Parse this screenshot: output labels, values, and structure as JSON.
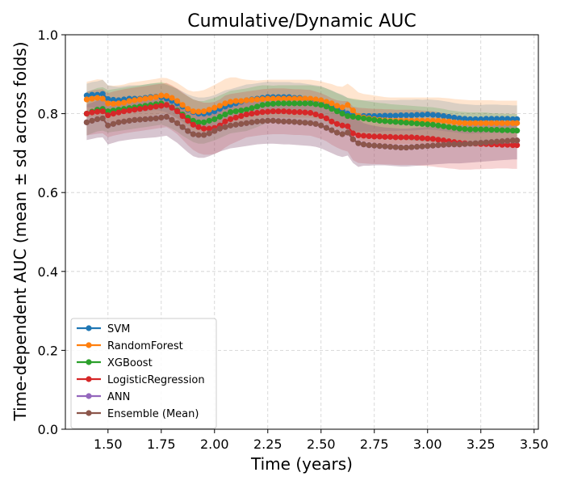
{
  "chart_data": {
    "type": "line",
    "title": "Cumulative/Dynamic AUC",
    "xlabel": "Time (years)",
    "ylabel": "Time-dependent AUC (mean ± sd across folds)",
    "xlim": [
      1.3,
      3.52
    ],
    "ylim": [
      0.0,
      1.0
    ],
    "xticks": [
      "1.50",
      "1.75",
      "2.00",
      "2.25",
      "2.50",
      "2.75",
      "3.00",
      "3.25",
      "3.50"
    ],
    "yticks": [
      "0.0",
      "0.2",
      "0.4",
      "0.6",
      "0.8",
      "1.0"
    ],
    "grid": true,
    "legend_position": "lower-left",
    "x": [
      1.4,
      1.425,
      1.45,
      1.475,
      1.5,
      1.525,
      1.55,
      1.575,
      1.6,
      1.625,
      1.65,
      1.675,
      1.7,
      1.725,
      1.75,
      1.775,
      1.8,
      1.825,
      1.85,
      1.875,
      1.9,
      1.925,
      1.95,
      1.975,
      2.0,
      2.025,
      2.05,
      2.075,
      2.1,
      2.125,
      2.15,
      2.175,
      2.2,
      2.225,
      2.25,
      2.275,
      2.3,
      2.325,
      2.35,
      2.375,
      2.4,
      2.425,
      2.45,
      2.475,
      2.5,
      2.525,
      2.55,
      2.575,
      2.6,
      2.625,
      2.65,
      2.675,
      2.7,
      2.725,
      2.75,
      2.775,
      2.8,
      2.825,
      2.85,
      2.875,
      2.9,
      2.925,
      2.95,
      2.975,
      3.0,
      3.025,
      3.05,
      3.075,
      3.1,
      3.125,
      3.15,
      3.175,
      3.2,
      3.225,
      3.25,
      3.275,
      3.3,
      3.325,
      3.35,
      3.375,
      3.4,
      3.42
    ],
    "series": [
      {
        "name": "SVM",
        "color": "#1f77b4",
        "values": [
          0.846,
          0.848,
          0.848,
          0.85,
          0.837,
          0.835,
          0.834,
          0.836,
          0.838,
          0.838,
          0.838,
          0.84,
          0.842,
          0.843,
          0.842,
          0.838,
          0.832,
          0.826,
          0.818,
          0.81,
          0.804,
          0.8,
          0.8,
          0.802,
          0.806,
          0.812,
          0.818,
          0.822,
          0.826,
          0.83,
          0.834,
          0.836,
          0.838,
          0.84,
          0.842,
          0.842,
          0.842,
          0.842,
          0.842,
          0.84,
          0.84,
          0.838,
          0.836,
          0.834,
          0.832,
          0.826,
          0.82,
          0.814,
          0.808,
          0.8,
          0.796,
          0.794,
          0.794,
          0.794,
          0.794,
          0.794,
          0.795,
          0.795,
          0.795,
          0.796,
          0.796,
          0.796,
          0.797,
          0.797,
          0.798,
          0.797,
          0.796,
          0.794,
          0.792,
          0.79,
          0.788,
          0.787,
          0.786,
          0.786,
          0.786,
          0.787,
          0.787,
          0.787,
          0.787,
          0.787,
          0.786,
          0.786
        ],
        "sd": [
          0.03,
          0.032,
          0.034,
          0.036,
          0.035,
          0.034,
          0.034,
          0.034,
          0.034,
          0.034,
          0.034,
          0.034,
          0.034,
          0.034,
          0.035,
          0.035,
          0.036,
          0.037,
          0.038,
          0.039,
          0.04,
          0.041,
          0.041,
          0.041,
          0.041,
          0.041,
          0.041,
          0.04,
          0.04,
          0.04,
          0.04,
          0.039,
          0.039,
          0.039,
          0.039,
          0.038,
          0.038,
          0.038,
          0.038,
          0.038,
          0.038,
          0.038,
          0.038,
          0.038,
          0.038,
          0.038,
          0.039,
          0.039,
          0.04,
          0.04,
          0.04,
          0.04,
          0.04,
          0.04,
          0.04,
          0.04,
          0.039,
          0.039,
          0.039,
          0.039,
          0.039,
          0.039,
          0.039,
          0.038,
          0.038,
          0.038,
          0.038,
          0.038,
          0.038,
          0.037,
          0.037,
          0.037,
          0.037,
          0.036,
          0.036,
          0.036,
          0.036,
          0.036,
          0.035,
          0.035,
          0.035,
          0.035
        ]
      },
      {
        "name": "RandomForest",
        "color": "#ff7f0e",
        "values": [
          0.836,
          0.838,
          0.84,
          0.838,
          0.826,
          0.825,
          0.826,
          0.828,
          0.832,
          0.834,
          0.836,
          0.838,
          0.84,
          0.842,
          0.846,
          0.845,
          0.84,
          0.832,
          0.822,
          0.812,
          0.806,
          0.805,
          0.806,
          0.81,
          0.815,
          0.82,
          0.826,
          0.83,
          0.832,
          0.832,
          0.834,
          0.835,
          0.836,
          0.837,
          0.838,
          0.838,
          0.838,
          0.838,
          0.838,
          0.838,
          0.838,
          0.838,
          0.838,
          0.836,
          0.834,
          0.83,
          0.826,
          0.82,
          0.816,
          0.822,
          0.808,
          0.794,
          0.79,
          0.788,
          0.786,
          0.784,
          0.783,
          0.782,
          0.782,
          0.782,
          0.782,
          0.782,
          0.782,
          0.782,
          0.782,
          0.782,
          0.782,
          0.781,
          0.78,
          0.778,
          0.777,
          0.776,
          0.776,
          0.776,
          0.776,
          0.776,
          0.776,
          0.776,
          0.776,
          0.776,
          0.776,
          0.776
        ],
        "sd": [
          0.045,
          0.046,
          0.047,
          0.048,
          0.046,
          0.046,
          0.046,
          0.046,
          0.046,
          0.046,
          0.046,
          0.046,
          0.046,
          0.046,
          0.045,
          0.045,
          0.045,
          0.046,
          0.047,
          0.048,
          0.05,
          0.052,
          0.054,
          0.056,
          0.058,
          0.06,
          0.062,
          0.062,
          0.06,
          0.056,
          0.052,
          0.05,
          0.048,
          0.048,
          0.048,
          0.048,
          0.048,
          0.048,
          0.048,
          0.048,
          0.048,
          0.048,
          0.048,
          0.048,
          0.048,
          0.048,
          0.049,
          0.05,
          0.052,
          0.054,
          0.058,
          0.06,
          0.06,
          0.06,
          0.06,
          0.06,
          0.059,
          0.059,
          0.059,
          0.059,
          0.059,
          0.059,
          0.059,
          0.059,
          0.059,
          0.059,
          0.059,
          0.059,
          0.059,
          0.059,
          0.059,
          0.059,
          0.058,
          0.058,
          0.058,
          0.058,
          0.058,
          0.057,
          0.057,
          0.057,
          0.057,
          0.057
        ]
      },
      {
        "name": "XGBoost",
        "color": "#2ca02c",
        "values": [
          0.8,
          0.805,
          0.81,
          0.812,
          0.806,
          0.808,
          0.81,
          0.812,
          0.814,
          0.816,
          0.818,
          0.82,
          0.822,
          0.824,
          0.826,
          0.822,
          0.816,
          0.808,
          0.798,
          0.79,
          0.782,
          0.778,
          0.778,
          0.782,
          0.786,
          0.792,
          0.798,
          0.804,
          0.806,
          0.808,
          0.81,
          0.814,
          0.818,
          0.822,
          0.824,
          0.825,
          0.826,
          0.826,
          0.826,
          0.826,
          0.826,
          0.826,
          0.826,
          0.824,
          0.822,
          0.818,
          0.812,
          0.806,
          0.8,
          0.794,
          0.792,
          0.79,
          0.788,
          0.786,
          0.784,
          0.782,
          0.781,
          0.78,
          0.779,
          0.778,
          0.777,
          0.776,
          0.775,
          0.774,
          0.773,
          0.772,
          0.77,
          0.768,
          0.766,
          0.764,
          0.762,
          0.761,
          0.76,
          0.76,
          0.76,
          0.76,
          0.759,
          0.759,
          0.758,
          0.758,
          0.757,
          0.757
        ],
        "sd": [
          0.055,
          0.055,
          0.055,
          0.055,
          0.054,
          0.054,
          0.054,
          0.054,
          0.054,
          0.054,
          0.054,
          0.054,
          0.054,
          0.054,
          0.054,
          0.054,
          0.054,
          0.054,
          0.054,
          0.054,
          0.054,
          0.054,
          0.054,
          0.054,
          0.054,
          0.054,
          0.054,
          0.054,
          0.054,
          0.054,
          0.054,
          0.053,
          0.052,
          0.05,
          0.048,
          0.046,
          0.046,
          0.046,
          0.046,
          0.046,
          0.046,
          0.046,
          0.046,
          0.046,
          0.046,
          0.046,
          0.046,
          0.046,
          0.046,
          0.046,
          0.046,
          0.046,
          0.045,
          0.045,
          0.045,
          0.045,
          0.045,
          0.044,
          0.044,
          0.044,
          0.044,
          0.044,
          0.044,
          0.044,
          0.044,
          0.044,
          0.044,
          0.044,
          0.043,
          0.043,
          0.043,
          0.043,
          0.043,
          0.043,
          0.043,
          0.043,
          0.042,
          0.042,
          0.042,
          0.042,
          0.042,
          0.042
        ]
      },
      {
        "name": "LogisticRegression",
        "color": "#d62728",
        "values": [
          0.8,
          0.803,
          0.805,
          0.806,
          0.796,
          0.8,
          0.803,
          0.806,
          0.808,
          0.81,
          0.812,
          0.814,
          0.816,
          0.818,
          0.82,
          0.822,
          0.815,
          0.806,
          0.794,
          0.782,
          0.772,
          0.766,
          0.762,
          0.762,
          0.764,
          0.77,
          0.78,
          0.786,
          0.79,
          0.794,
          0.798,
          0.8,
          0.802,
          0.804,
          0.805,
          0.806,
          0.806,
          0.806,
          0.805,
          0.804,
          0.804,
          0.803,
          0.802,
          0.798,
          0.794,
          0.788,
          0.78,
          0.774,
          0.77,
          0.768,
          0.75,
          0.745,
          0.744,
          0.743,
          0.742,
          0.742,
          0.741,
          0.741,
          0.74,
          0.74,
          0.74,
          0.74,
          0.739,
          0.738,
          0.737,
          0.736,
          0.734,
          0.732,
          0.73,
          0.728,
          0.726,
          0.725,
          0.724,
          0.724,
          0.723,
          0.723,
          0.722,
          0.722,
          0.721,
          0.721,
          0.72,
          0.72
        ],
        "sd": [
          0.055,
          0.056,
          0.056,
          0.056,
          0.056,
          0.056,
          0.056,
          0.056,
          0.056,
          0.056,
          0.056,
          0.056,
          0.056,
          0.056,
          0.056,
          0.056,
          0.057,
          0.058,
          0.06,
          0.062,
          0.064,
          0.066,
          0.066,
          0.066,
          0.066,
          0.066,
          0.066,
          0.064,
          0.062,
          0.06,
          0.058,
          0.058,
          0.058,
          0.058,
          0.058,
          0.058,
          0.058,
          0.058,
          0.058,
          0.058,
          0.058,
          0.058,
          0.058,
          0.058,
          0.058,
          0.058,
          0.059,
          0.06,
          0.062,
          0.064,
          0.068,
          0.07,
          0.07,
          0.07,
          0.07,
          0.07,
          0.07,
          0.07,
          0.07,
          0.07,
          0.07,
          0.07,
          0.07,
          0.07,
          0.07,
          0.07,
          0.07,
          0.069,
          0.069,
          0.068,
          0.068,
          0.067,
          0.066,
          0.065,
          0.064,
          0.063,
          0.062,
          0.061,
          0.06,
          0.06,
          0.06,
          0.06
        ]
      },
      {
        "name": "ANN",
        "color": "#9467bd",
        "values": [
          0.778,
          0.782,
          0.786,
          0.788,
          0.77,
          0.774,
          0.778,
          0.78,
          0.782,
          0.784,
          0.785,
          0.786,
          0.787,
          0.788,
          0.79,
          0.792,
          0.784,
          0.776,
          0.766,
          0.756,
          0.748,
          0.746,
          0.746,
          0.75,
          0.756,
          0.762,
          0.766,
          0.77,
          0.772,
          0.774,
          0.776,
          0.778,
          0.78,
          0.781,
          0.782,
          0.782,
          0.781,
          0.78,
          0.78,
          0.779,
          0.778,
          0.777,
          0.776,
          0.774,
          0.77,
          0.764,
          0.758,
          0.752,
          0.748,
          0.752,
          0.735,
          0.725,
          0.722,
          0.72,
          0.719,
          0.718,
          0.717,
          0.716,
          0.715,
          0.714,
          0.714,
          0.715,
          0.716,
          0.717,
          0.718,
          0.719,
          0.72,
          0.721,
          0.722,
          0.722,
          0.722,
          0.723,
          0.724,
          0.725,
          0.726,
          0.727,
          0.728,
          0.729,
          0.73,
          0.731,
          0.732,
          0.732
        ],
        "sd": [
          0.045,
          0.046,
          0.047,
          0.048,
          0.048,
          0.048,
          0.048,
          0.048,
          0.048,
          0.048,
          0.048,
          0.048,
          0.048,
          0.048,
          0.048,
          0.048,
          0.049,
          0.05,
          0.052,
          0.054,
          0.056,
          0.058,
          0.058,
          0.058,
          0.058,
          0.058,
          0.058,
          0.058,
          0.058,
          0.058,
          0.058,
          0.058,
          0.058,
          0.058,
          0.058,
          0.058,
          0.058,
          0.058,
          0.058,
          0.058,
          0.058,
          0.058,
          0.058,
          0.058,
          0.058,
          0.058,
          0.058,
          0.058,
          0.058,
          0.058,
          0.06,
          0.06,
          0.054,
          0.052,
          0.05,
          0.049,
          0.048,
          0.048,
          0.048,
          0.048,
          0.048,
          0.048,
          0.048,
          0.048,
          0.048,
          0.048,
          0.048,
          0.048,
          0.048,
          0.048,
          0.048,
          0.048,
          0.048,
          0.048,
          0.048,
          0.048,
          0.048,
          0.048,
          0.048,
          0.048,
          0.048,
          0.048
        ]
      },
      {
        "name": "Ensemble (Mean)",
        "color": "#8c564b",
        "values": [
          0.778,
          0.782,
          0.786,
          0.788,
          0.77,
          0.774,
          0.778,
          0.78,
          0.782,
          0.784,
          0.785,
          0.786,
          0.787,
          0.788,
          0.79,
          0.792,
          0.784,
          0.776,
          0.766,
          0.756,
          0.748,
          0.746,
          0.746,
          0.75,
          0.756,
          0.762,
          0.766,
          0.77,
          0.772,
          0.774,
          0.776,
          0.778,
          0.78,
          0.781,
          0.782,
          0.782,
          0.781,
          0.78,
          0.78,
          0.779,
          0.778,
          0.777,
          0.776,
          0.774,
          0.77,
          0.764,
          0.758,
          0.752,
          0.748,
          0.752,
          0.735,
          0.725,
          0.722,
          0.72,
          0.719,
          0.718,
          0.717,
          0.716,
          0.715,
          0.714,
          0.714,
          0.715,
          0.716,
          0.717,
          0.718,
          0.719,
          0.72,
          0.721,
          0.722,
          0.722,
          0.722,
          0.723,
          0.724,
          0.725,
          0.726,
          0.727,
          0.728,
          0.729,
          0.73,
          0.731,
          0.732,
          0.732
        ],
        "sd": [
          0.045,
          0.046,
          0.047,
          0.048,
          0.048,
          0.048,
          0.048,
          0.048,
          0.048,
          0.048,
          0.048,
          0.048,
          0.048,
          0.048,
          0.048,
          0.048,
          0.049,
          0.05,
          0.052,
          0.054,
          0.056,
          0.058,
          0.058,
          0.058,
          0.058,
          0.058,
          0.058,
          0.058,
          0.058,
          0.058,
          0.058,
          0.058,
          0.058,
          0.058,
          0.058,
          0.058,
          0.058,
          0.058,
          0.058,
          0.058,
          0.058,
          0.058,
          0.058,
          0.058,
          0.058,
          0.058,
          0.058,
          0.058,
          0.058,
          0.058,
          0.06,
          0.06,
          0.054,
          0.052,
          0.05,
          0.049,
          0.048,
          0.048,
          0.048,
          0.048,
          0.048,
          0.048,
          0.048,
          0.048,
          0.048,
          0.048,
          0.048,
          0.048,
          0.048,
          0.048,
          0.048,
          0.048,
          0.048,
          0.048,
          0.048,
          0.048,
          0.048,
          0.048,
          0.048,
          0.048,
          0.048,
          0.048
        ]
      }
    ]
  }
}
